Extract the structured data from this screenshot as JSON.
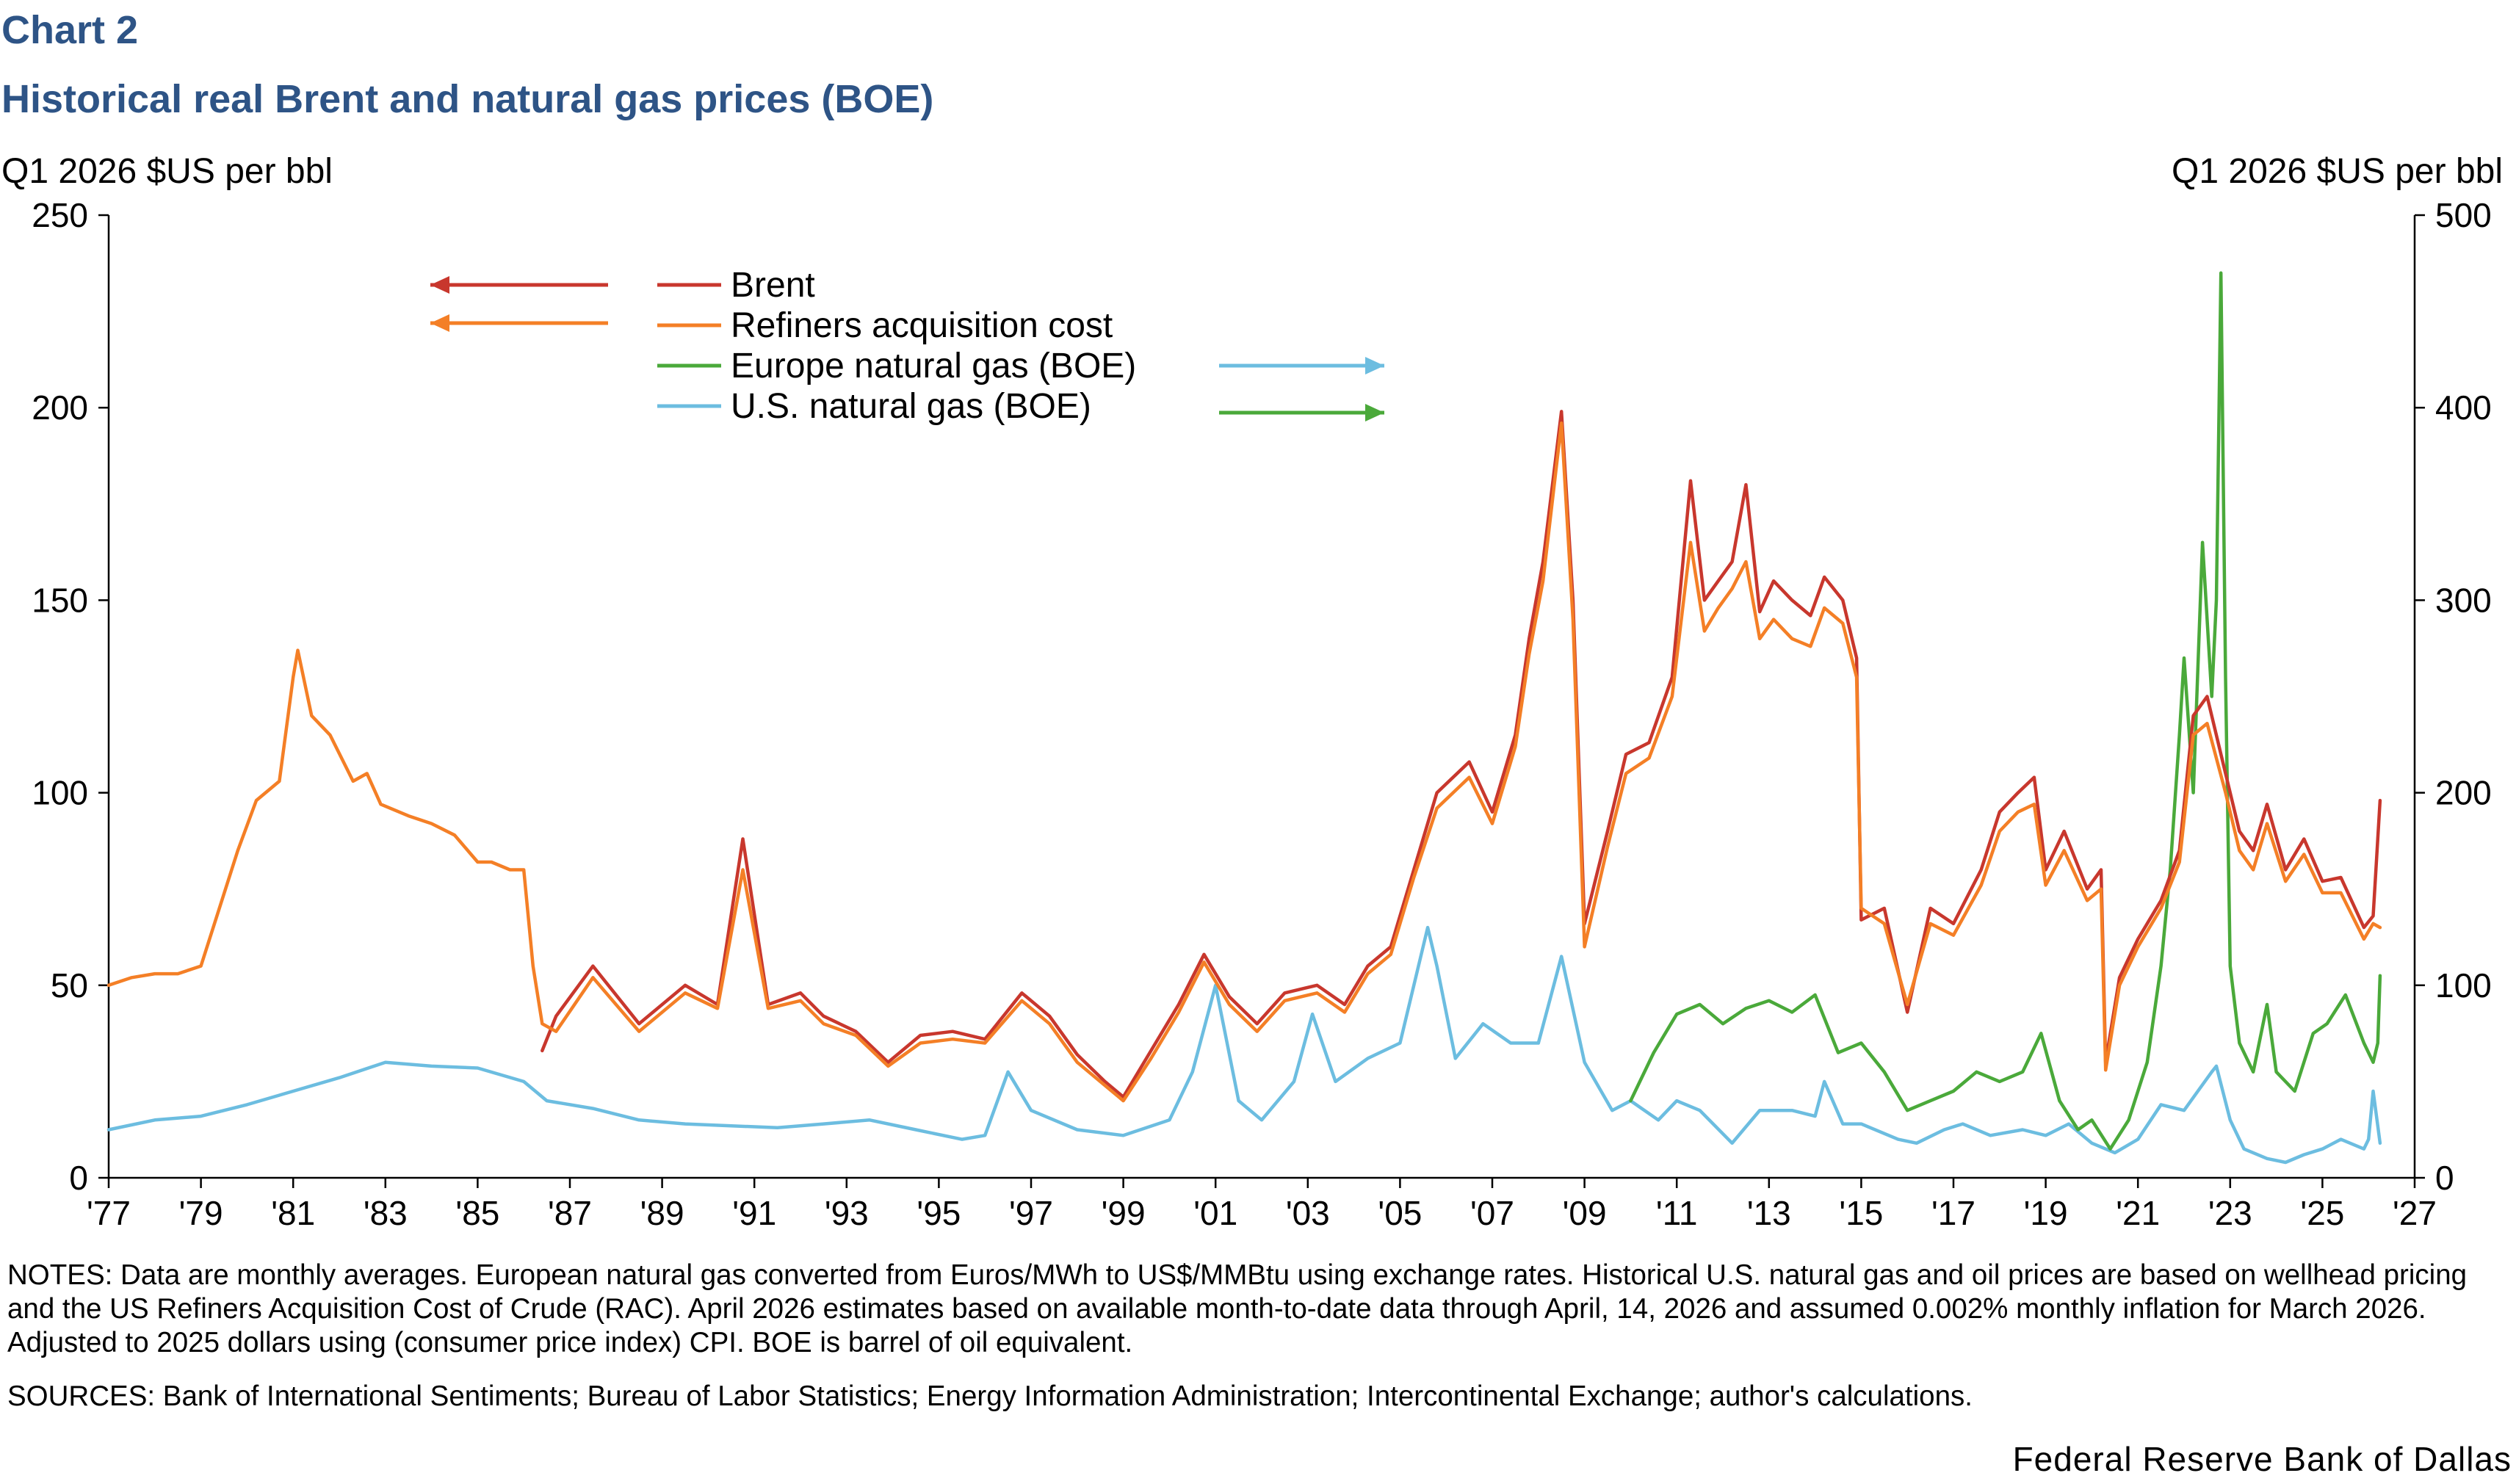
{
  "header": {
    "chart_number": "Chart 2",
    "title": "Historical real Brent and natural gas prices (BOE)"
  },
  "axes": {
    "left_unit": "Q1 2026 $US per bbl",
    "right_unit": "Q1 2026 $US per bbl"
  },
  "footer": {
    "notes": "NOTES: Data are monthly averages. European natural gas converted from Euros/MWh to US$/MMBtu using exchange rates. Historical U.S. natural gas and oil prices are based on wellhead pricing and the US Refiners Acquisition Cost of Crude (RAC). April 2026 estimates based on available month-to-date data through April, 14, 2026 and assumed 0.002% monthly inflation for March 2026. Adjusted to 2025 dollars using (consumer price index) CPI. BOE is barrel of oil equivalent.",
    "sources": "SOURCES: Bank of International Sentiments; Bureau of Labor Statistics; Energy Information Administration; Intercontinental Exchange; author's calculations.",
    "brand": "Federal Reserve Bank of Dallas"
  },
  "colors": {
    "brent": "#c8372d",
    "rac": "#f47f26",
    "europe_gas": "#4aa93a",
    "us_gas": "#6cbde0",
    "title": "#2e5486"
  },
  "chart_data": {
    "type": "line",
    "title": "Historical real Brent and natural gas prices (BOE)",
    "xlim": [
      1977,
      2027
    ],
    "ylim_left": [
      0,
      250
    ],
    "ylim_right": [
      0,
      500
    ],
    "x_tick_labels": [
      "'77",
      "'79",
      "'81",
      "'83",
      "'85",
      "'87",
      "'89",
      "'91",
      "'93",
      "'95",
      "'97",
      "'99",
      "'01",
      "'03",
      "'05",
      "'07",
      "'09",
      "'11",
      "'13",
      "'15",
      "'17",
      "'19",
      "'21",
      "'23",
      "'25",
      "'27"
    ],
    "y_left_ticks": [
      0,
      50,
      100,
      150,
      200,
      250
    ],
    "y_right_ticks": [
      0,
      100,
      200,
      300,
      400,
      500
    ],
    "grid": false,
    "legend": {
      "placement": "top-left",
      "entries": [
        {
          "label": "Brent",
          "series": "brent",
          "axis_arrow": "left"
        },
        {
          "label": "Refiners acquisition cost",
          "series": "rac",
          "axis_arrow": "left"
        },
        {
          "label": "Europe natural gas (BOE)",
          "series": "europe_gas",
          "axis_arrow": "right"
        },
        {
          "label": "U.S. natural gas (BOE)",
          "series": "us_gas",
          "axis_arrow": "right"
        }
      ]
    },
    "series": [
      {
        "key": "brent",
        "name": "Brent",
        "axis": "left",
        "x": [
          1986.4,
          1986.7,
          1987.5,
          1988.5,
          1989.5,
          1990.2,
          1990.75,
          1991.3,
          1992.0,
          1992.5,
          1993.2,
          1993.9,
          1994.6,
          1995.3,
          1996.0,
          1996.8,
          1997.4,
          1998.0,
          1998.6,
          1999.0,
          1999.6,
          2000.2,
          2000.75,
          2001.3,
          2001.9,
          2002.5,
          2003.2,
          2003.8,
          2004.3,
          2004.8,
          2005.3,
          2005.8,
          2006.5,
          2007.0,
          2007.5,
          2007.8,
          2008.1,
          2008.5,
          2008.75,
          2009.0,
          2009.5,
          2009.9,
          2010.4,
          2010.9,
          2011.3,
          2011.6,
          2011.9,
          2012.2,
          2012.5,
          2012.8,
          2013.1,
          2013.5,
          2013.9,
          2014.2,
          2014.6,
          2014.9,
          2015.0,
          2015.5,
          2016.0,
          2016.5,
          2017.0,
          2017.6,
          2018.0,
          2018.4,
          2018.75,
          2019.0,
          2019.4,
          2019.9,
          2020.2,
          2020.3,
          2020.6,
          2021.0,
          2021.5,
          2021.9,
          2022.2,
          2022.5,
          2022.9,
          2023.2,
          2023.5,
          2023.8,
          2024.2,
          2024.6,
          2025.0,
          2025.4,
          2025.9,
          2026.1,
          2026.25
        ],
        "values": [
          33,
          42,
          55,
          40,
          50,
          45,
          88,
          45,
          48,
          42,
          38,
          30,
          37,
          38,
          36,
          48,
          42,
          32,
          25,
          21,
          33,
          45,
          58,
          47,
          40,
          48,
          50,
          45,
          55,
          60,
          80,
          100,
          108,
          95,
          115,
          140,
          160,
          199,
          150,
          66,
          90,
          110,
          113,
          130,
          181,
          150,
          155,
          160,
          180,
          147,
          155,
          150,
          146,
          156,
          150,
          135,
          67,
          70,
          43,
          70,
          66,
          80,
          95,
          100,
          104,
          80,
          90,
          75,
          80,
          30,
          52,
          62,
          72,
          85,
          120,
          125,
          105,
          90,
          85,
          97,
          80,
          88,
          77,
          78,
          65,
          68,
          98
        ]
      },
      {
        "key": "rac",
        "name": "Refiners acquisition cost",
        "axis": "left",
        "x": [
          1977.0,
          1977.5,
          1978.0,
          1978.5,
          1979.0,
          1979.4,
          1979.8,
          1980.2,
          1980.7,
          1981.0,
          1981.1,
          1981.4,
          1981.8,
          1982.3,
          1982.6,
          1982.9,
          1983.5,
          1984.0,
          1984.5,
          1985.0,
          1985.3,
          1985.7,
          1986.0,
          1986.2,
          1986.4,
          1986.7,
          1987.5,
          1988.5,
          1989.5,
          1990.2,
          1990.75,
          1991.3,
          1992.0,
          1992.5,
          1993.2,
          1993.9,
          1994.6,
          1995.3,
          1996.0,
          1996.8,
          1997.4,
          1998.0,
          1998.6,
          1999.0,
          1999.6,
          2000.2,
          2000.75,
          2001.3,
          2001.9,
          2002.5,
          2003.2,
          2003.8,
          2004.3,
          2004.8,
          2005.3,
          2005.8,
          2006.5,
          2007.0,
          2007.5,
          2007.8,
          2008.1,
          2008.5,
          2008.75,
          2009.0,
          2009.5,
          2009.9,
          2010.4,
          2010.9,
          2011.3,
          2011.6,
          2011.9,
          2012.2,
          2012.5,
          2012.8,
          2013.1,
          2013.5,
          2013.9,
          2014.2,
          2014.6,
          2014.9,
          2015.0,
          2015.5,
          2016.0,
          2016.5,
          2017.0,
          2017.6,
          2018.0,
          2018.4,
          2018.75,
          2019.0,
          2019.4,
          2019.9,
          2020.2,
          2020.3,
          2020.6,
          2021.0,
          2021.5,
          2021.9,
          2022.2,
          2022.5,
          2022.9,
          2023.2,
          2023.5,
          2023.8,
          2024.2,
          2024.6,
          2025.0,
          2025.4,
          2025.9,
          2026.1,
          2026.25
        ],
        "values": [
          50,
          52,
          53,
          53,
          55,
          70,
          85,
          98,
          103,
          130,
          137,
          120,
          115,
          103,
          105,
          97,
          94,
          92,
          89,
          82,
          82,
          80,
          80,
          55,
          40,
          38,
          52,
          38,
          48,
          44,
          80,
          44,
          46,
          40,
          37,
          29,
          35,
          36,
          35,
          46,
          40,
          30,
          24,
          20,
          31,
          43,
          56,
          45,
          38,
          46,
          48,
          43,
          53,
          58,
          78,
          96,
          104,
          92,
          112,
          136,
          155,
          196,
          145,
          60,
          86,
          105,
          109,
          125,
          165,
          142,
          148,
          153,
          160,
          140,
          145,
          140,
          138,
          148,
          144,
          130,
          70,
          66,
          45,
          66,
          63,
          76,
          90,
          95,
          97,
          76,
          85,
          72,
          75,
          28,
          50,
          60,
          70,
          82,
          115,
          118,
          100,
          85,
          80,
          92,
          77,
          84,
          74,
          74,
          62,
          66,
          65
        ]
      },
      {
        "key": "europe_gas",
        "name": "Europe natural gas (BOE)",
        "axis": "right",
        "x": [
          2010.0,
          2010.5,
          2011.0,
          2011.5,
          2012.0,
          2012.5,
          2013.0,
          2013.5,
          2014.0,
          2014.5,
          2015.0,
          2015.5,
          2016.0,
          2016.5,
          2017.0,
          2017.5,
          2018.0,
          2018.5,
          2018.9,
          2019.3,
          2019.7,
          2020.0,
          2020.4,
          2020.8,
          2021.2,
          2021.5,
          2021.7,
          2021.9,
          2022.0,
          2022.2,
          2022.4,
          2022.6,
          2022.7,
          2022.8,
          2022.9,
          2023.0,
          2023.2,
          2023.5,
          2023.8,
          2024.0,
          2024.4,
          2024.8,
          2025.1,
          2025.5,
          2025.9,
          2026.1,
          2026.2,
          2026.25
        ],
        "values": [
          40,
          65,
          85,
          90,
          80,
          88,
          92,
          86,
          95,
          65,
          70,
          55,
          35,
          40,
          45,
          55,
          50,
          55,
          75,
          40,
          25,
          30,
          15,
          30,
          60,
          110,
          160,
          230,
          270,
          200,
          330,
          250,
          300,
          470,
          260,
          110,
          70,
          55,
          90,
          55,
          45,
          75,
          80,
          95,
          70,
          60,
          70,
          105
        ]
      },
      {
        "key": "us_gas",
        "name": "U.S. natural gas (BOE)",
        "axis": "right",
        "x": [
          1977.0,
          1978.0,
          1979.0,
          1980.0,
          1981.0,
          1982.0,
          1983.0,
          1984.0,
          1985.0,
          1986.0,
          1986.5,
          1987.5,
          1988.5,
          1989.5,
          1990.5,
          1991.5,
          1992.5,
          1993.5,
          1994.5,
          1995.5,
          1996.0,
          1996.5,
          1997.0,
          1998.0,
          1999.0,
          2000.0,
          2000.5,
          2001.0,
          2001.5,
          2002.0,
          2002.7,
          2003.1,
          2003.6,
          2004.3,
          2005.0,
          2005.6,
          2005.8,
          2006.2,
          2006.8,
          2007.4,
          2008.0,
          2008.5,
          2009.0,
          2009.6,
          2010.0,
          2010.6,
          2011.0,
          2011.5,
          2012.2,
          2012.8,
          2013.5,
          2014.0,
          2014.2,
          2014.6,
          2015.0,
          2015.8,
          2016.2,
          2016.8,
          2017.2,
          2017.8,
          2018.5,
          2019.0,
          2019.5,
          2020.0,
          2020.5,
          2021.0,
          2021.5,
          2022.0,
          2022.3,
          2022.6,
          2022.7,
          2023.0,
          2023.3,
          2023.8,
          2024.2,
          2024.6,
          2025.0,
          2025.4,
          2025.9,
          2026.0,
          2026.1,
          2026.25
        ],
        "values": [
          25,
          30,
          32,
          38,
          45,
          52,
          60,
          58,
          57,
          50,
          40,
          36,
          30,
          28,
          27,
          26,
          28,
          30,
          25,
          20,
          22,
          55,
          35,
          25,
          22,
          30,
          55,
          100,
          40,
          30,
          50,
          85,
          50,
          62,
          70,
          130,
          110,
          62,
          80,
          70,
          70,
          115,
          60,
          35,
          40,
          30,
          40,
          35,
          18,
          35,
          35,
          32,
          50,
          28,
          28,
          20,
          18,
          25,
          28,
          22,
          25,
          22,
          28,
          18,
          13,
          20,
          38,
          35,
          45,
          55,
          58,
          30,
          15,
          10,
          8,
          12,
          15,
          20,
          15,
          20,
          45,
          18
        ]
      }
    ]
  }
}
